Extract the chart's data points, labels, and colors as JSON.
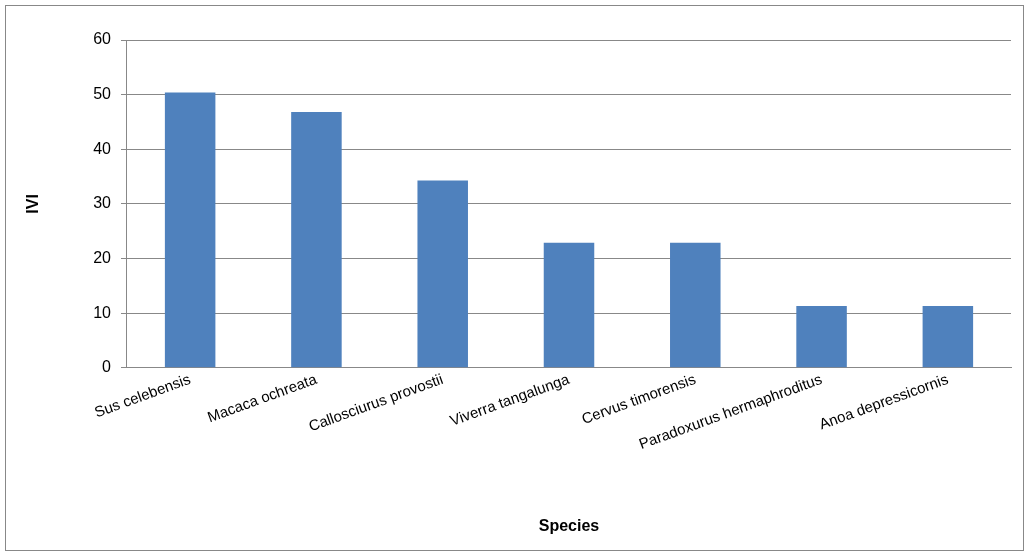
{
  "chart_data": {
    "type": "bar",
    "xlabel": "Species",
    "ylabel": "IVI",
    "categories": [
      "Sus celebensis",
      "Macaca ochreata",
      "Callosciurus provostii",
      "Viverra tangalunga",
      "Cervus timorensis",
      "Paradoxurus hermaphroditus",
      "Anoa depressicornis"
    ],
    "values": [
      50.4,
      46.8,
      34.3,
      22.9,
      22.9,
      11.3,
      11.3
    ],
    "color": "#4f81bd",
    "ylim": [
      0,
      60
    ],
    "yticks": [
      0,
      10,
      20,
      30,
      40,
      50,
      60
    ],
    "grid": "y",
    "legend": false
  }
}
